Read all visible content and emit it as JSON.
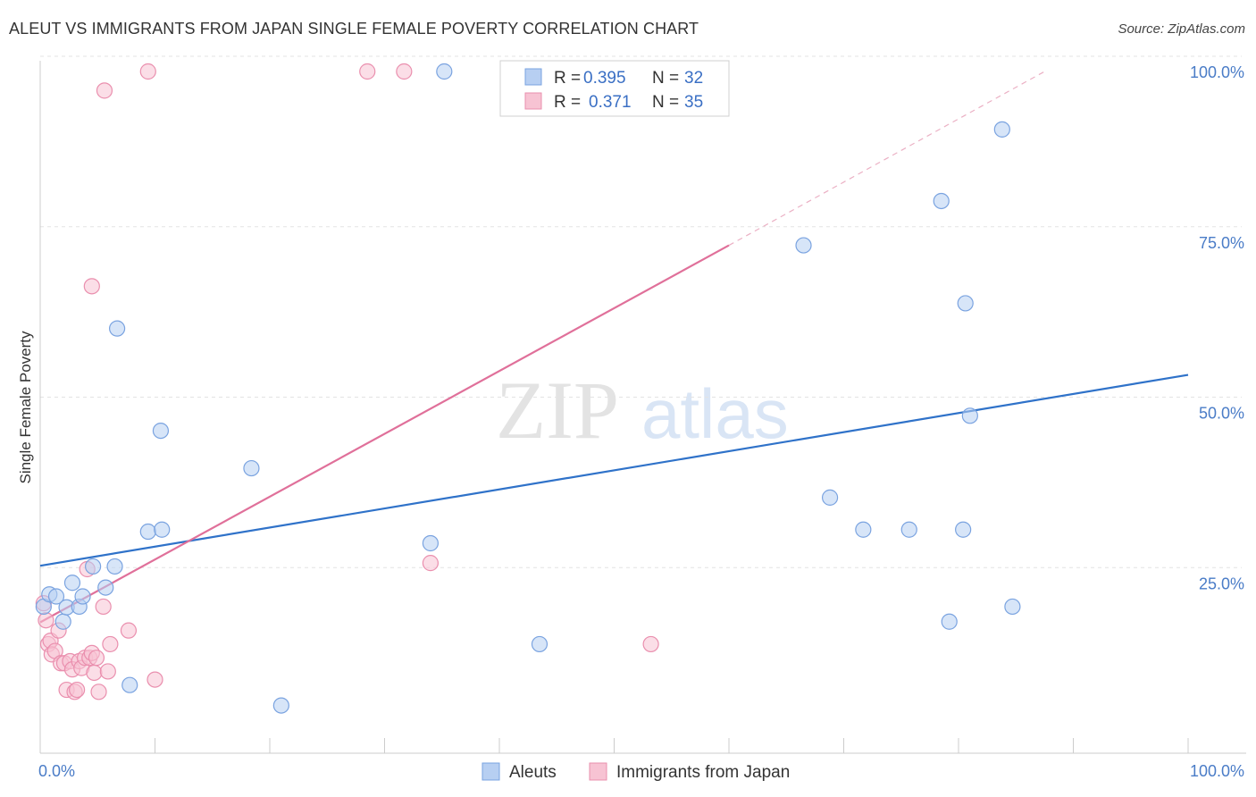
{
  "header": {
    "title": "ALEUT VS IMMIGRANTS FROM JAPAN SINGLE FEMALE POVERTY CORRELATION CHART",
    "source": "Source: ZipAtlas.com"
  },
  "watermark": {
    "zip": "ZIP",
    "atlas": "atlas"
  },
  "legend_box": {
    "rows": [
      {
        "r_label": "R =",
        "r_value": "0.395",
        "n_label": "N =",
        "n_value": "32"
      },
      {
        "r_label": "R =",
        "r_value": "0.371",
        "n_label": "N =",
        "n_value": "35"
      }
    ]
  },
  "colors": {
    "aleut_fill": "#b7cff2",
    "aleut_stroke": "#7aa3e0",
    "aleut_line": "#2f72c9",
    "japan_fill": "#f7c3d3",
    "japan_stroke": "#ea8fae",
    "japan_line": "#e0709a"
  },
  "chart_data": {
    "type": "scatter",
    "title": "ALEUT VS IMMIGRANTS FROM JAPAN SINGLE FEMALE POVERTY CORRELATION CHART",
    "xlabel": "",
    "ylabel": "Single Female Poverty",
    "xlim": [
      0,
      100
    ],
    "ylim": [
      0,
      100
    ],
    "x_tick_labels": [
      "0.0%",
      "100.0%"
    ],
    "y_tick_labels": [
      "25.0%",
      "50.0%",
      "75.0%",
      "100.0%"
    ],
    "y_tick_values": [
      25,
      50,
      75,
      100
    ],
    "grid": true,
    "legend_placement": "bottom",
    "series": [
      {
        "name": "Aleuts",
        "r": 0.395,
        "n": 32,
        "trend": {
          "x": [
            0,
            100
          ],
          "y": [
            27.5,
            55.5
          ],
          "dashed_extension": false
        },
        "points": [
          [
            0.3,
            21.5
          ],
          [
            0.8,
            23.3
          ],
          [
            1.4,
            23.0
          ],
          [
            2.0,
            19.3
          ],
          [
            2.3,
            21.4
          ],
          [
            2.8,
            25.0
          ],
          [
            3.4,
            21.5
          ],
          [
            3.7,
            23.0
          ],
          [
            4.6,
            27.4
          ],
          [
            5.7,
            24.3
          ],
          [
            6.5,
            27.4
          ],
          [
            7.8,
            10.0
          ],
          [
            9.4,
            32.5
          ],
          [
            10.5,
            47.3
          ],
          [
            10.6,
            32.8
          ],
          [
            6.7,
            62.3
          ],
          [
            18.4,
            41.8
          ],
          [
            21.0,
            7.0
          ],
          [
            34.0,
            30.8
          ],
          [
            35.2,
            100.0
          ],
          [
            43.5,
            16.0
          ],
          [
            66.5,
            74.5
          ],
          [
            78.5,
            81.0
          ],
          [
            68.8,
            37.5
          ],
          [
            71.7,
            32.8
          ],
          [
            75.7,
            32.8
          ],
          [
            80.4,
            32.8
          ],
          [
            79.2,
            19.3
          ],
          [
            81.0,
            49.5
          ],
          [
            84.7,
            21.5
          ],
          [
            80.6,
            66.0
          ],
          [
            83.8,
            91.5
          ]
        ]
      },
      {
        "name": "Immigrants from Japan",
        "r": 0.371,
        "n": 35,
        "trend": {
          "x": [
            0,
            60
          ],
          "y": [
            19.2,
            74.5
          ],
          "dashed_to": [
            87.5,
            100
          ]
        },
        "points": [
          [
            0.3,
            22.0
          ],
          [
            0.5,
            19.5
          ],
          [
            0.7,
            16.0
          ],
          [
            0.9,
            16.5
          ],
          [
            1.0,
            14.5
          ],
          [
            1.3,
            15.0
          ],
          [
            1.6,
            18.0
          ],
          [
            1.8,
            13.2
          ],
          [
            2.1,
            13.2
          ],
          [
            2.3,
            9.3
          ],
          [
            2.6,
            13.5
          ],
          [
            2.8,
            12.3
          ],
          [
            3.0,
            9.0
          ],
          [
            3.2,
            9.3
          ],
          [
            3.4,
            13.5
          ],
          [
            3.6,
            12.5
          ],
          [
            3.9,
            14.0
          ],
          [
            4.1,
            27.0
          ],
          [
            4.3,
            14.0
          ],
          [
            4.5,
            14.7
          ],
          [
            4.7,
            11.8
          ],
          [
            4.9,
            14.0
          ],
          [
            5.1,
            9.0
          ],
          [
            5.5,
            21.5
          ],
          [
            5.9,
            12.0
          ],
          [
            6.1,
            16.0
          ],
          [
            7.7,
            18.0
          ],
          [
            10.0,
            10.8
          ],
          [
            4.5,
            68.5
          ],
          [
            5.6,
            97.2
          ],
          [
            9.4,
            100.0
          ],
          [
            28.5,
            100.0
          ],
          [
            31.7,
            100.0
          ],
          [
            34.0,
            27.9
          ],
          [
            53.2,
            16.0
          ]
        ]
      }
    ]
  }
}
